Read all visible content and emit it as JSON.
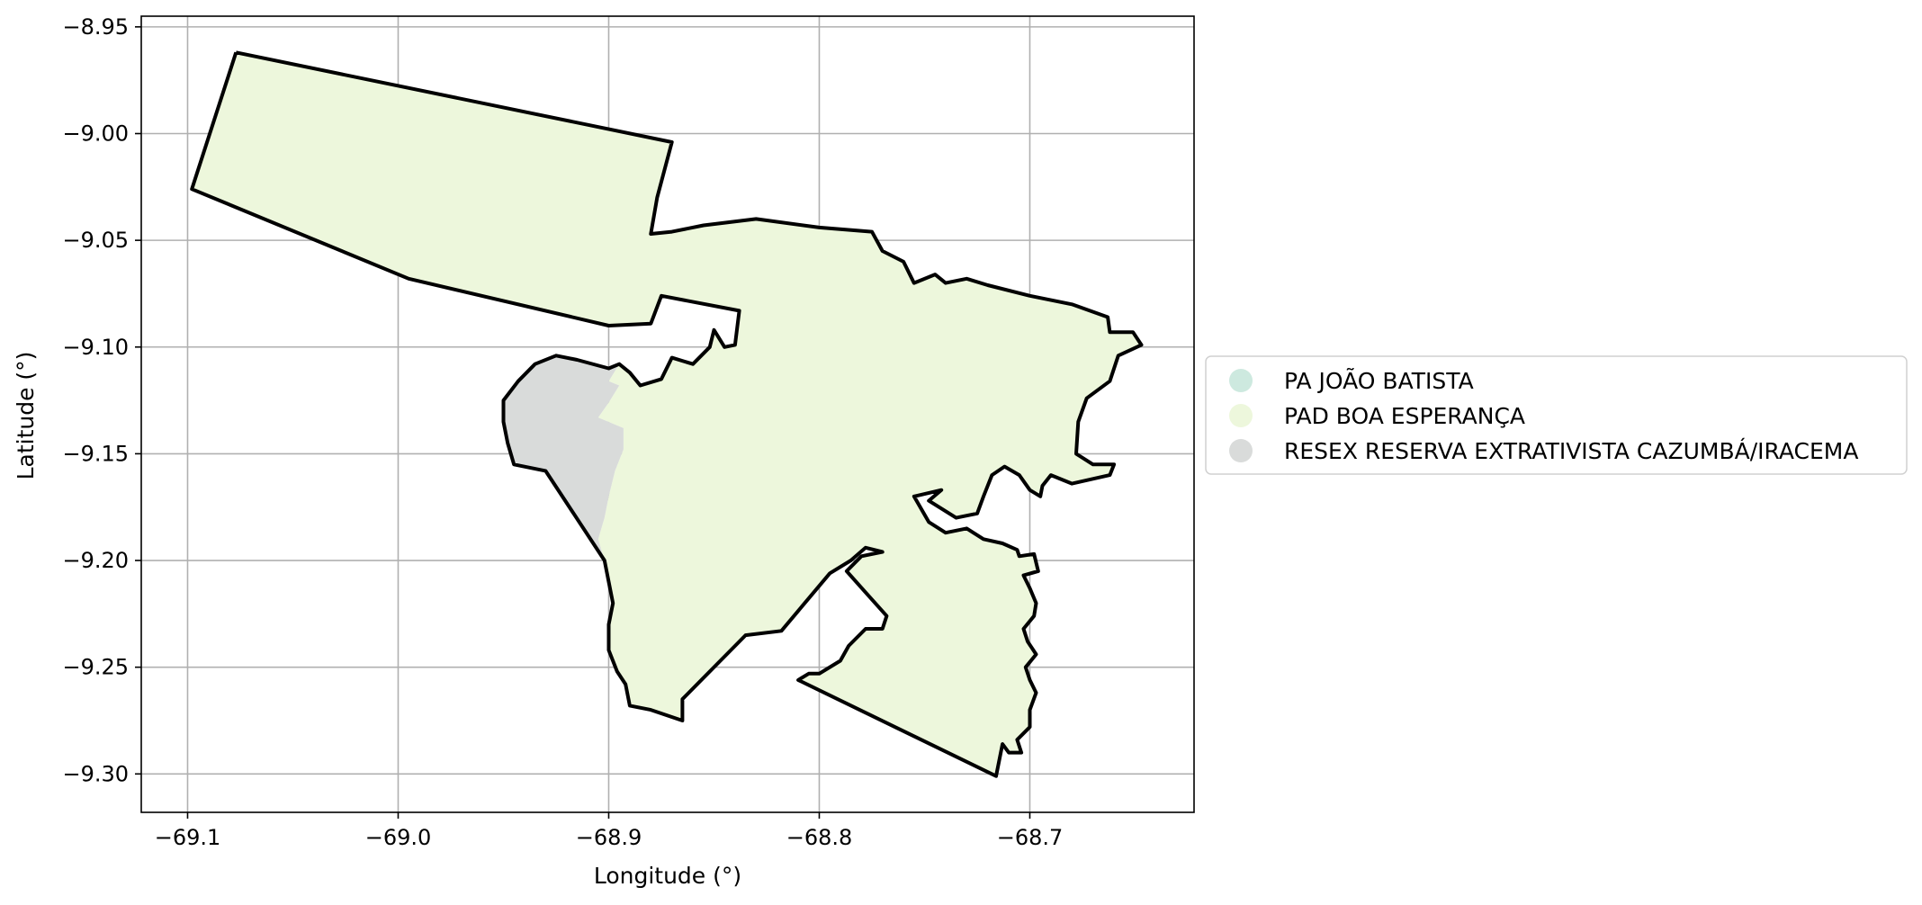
{
  "figure": {
    "xlabel": "Longitude (°)",
    "ylabel": "Latitude (°)"
  },
  "chart_data": {
    "type": "map",
    "xlim": [
      -69.122,
      -68.622
    ],
    "ylim": [
      -9.318,
      -8.945
    ],
    "grid": true,
    "legend_placement": "outside right, vertically centered",
    "x_ticks": [
      {
        "value": -69.1,
        "label": "−69.1"
      },
      {
        "value": -69.0,
        "label": "−69.0"
      },
      {
        "value": -68.9,
        "label": "−68.9"
      },
      {
        "value": -68.8,
        "label": "−68.8"
      },
      {
        "value": -68.7,
        "label": "−68.7"
      }
    ],
    "y_ticks": [
      {
        "value": -8.95,
        "label": "−8.95"
      },
      {
        "value": -9.0,
        "label": "−9.00"
      },
      {
        "value": -9.05,
        "label": "−9.05"
      },
      {
        "value": -9.1,
        "label": "−9.10"
      },
      {
        "value": -9.15,
        "label": "−9.15"
      },
      {
        "value": -9.2,
        "label": "−9.20"
      },
      {
        "value": -9.25,
        "label": "−9.25"
      },
      {
        "value": -9.3,
        "label": "−9.30"
      }
    ],
    "legend": [
      {
        "label": "PA JOÃO BATISTA",
        "color": "#cde9df"
      },
      {
        "label": "PAD BOA ESPERANÇA",
        "color": "#edf7dc"
      },
      {
        "label": "RESEX RESERVA EXTRATIVISTA CAZUMBÁ/IRACEMA",
        "color": "#d9dbda"
      }
    ],
    "boundary_color": "#000000",
    "regions": [
      {
        "name": "PAD BOA ESPERANÇA",
        "color": "#edf7dc",
        "coords": [
          [
            -69.077,
            -8.962
          ],
          [
            -68.87,
            -9.004
          ],
          [
            -68.877,
            -9.03
          ],
          [
            -68.88,
            -9.047
          ],
          [
            -68.87,
            -9.046
          ],
          [
            -68.855,
            -9.043
          ],
          [
            -68.83,
            -9.04
          ],
          [
            -68.8,
            -9.044
          ],
          [
            -68.775,
            -9.046
          ],
          [
            -68.77,
            -9.055
          ],
          [
            -68.76,
            -9.06
          ],
          [
            -68.755,
            -9.07
          ],
          [
            -68.745,
            -9.066
          ],
          [
            -68.74,
            -9.07
          ],
          [
            -68.73,
            -9.068
          ],
          [
            -68.72,
            -9.071
          ],
          [
            -68.7,
            -9.076
          ],
          [
            -68.68,
            -9.08
          ],
          [
            -68.663,
            -9.086
          ],
          [
            -68.662,
            -9.093
          ],
          [
            -68.651,
            -9.093
          ],
          [
            -68.647,
            -9.099
          ],
          [
            -68.658,
            -9.104
          ],
          [
            -68.662,
            -9.116
          ],
          [
            -68.673,
            -9.124
          ],
          [
            -68.677,
            -9.135
          ],
          [
            -68.678,
            -9.15
          ],
          [
            -68.67,
            -9.155
          ],
          [
            -68.66,
            -9.155
          ],
          [
            -68.662,
            -9.16
          ],
          [
            -68.68,
            -9.164
          ],
          [
            -68.69,
            -9.16
          ],
          [
            -68.694,
            -9.165
          ],
          [
            -68.695,
            -9.17
          ],
          [
            -68.7,
            -9.167
          ],
          [
            -68.705,
            -9.16
          ],
          [
            -68.712,
            -9.156
          ],
          [
            -68.718,
            -9.16
          ],
          [
            -68.722,
            -9.17
          ],
          [
            -68.725,
            -9.178
          ],
          [
            -68.735,
            -9.18
          ],
          [
            -68.748,
            -9.172
          ],
          [
            -68.742,
            -9.167
          ],
          [
            -68.755,
            -9.17
          ],
          [
            -68.748,
            -9.182
          ],
          [
            -68.74,
            -9.187
          ],
          [
            -68.73,
            -9.185
          ],
          [
            -68.722,
            -9.19
          ],
          [
            -68.713,
            -9.192
          ],
          [
            -68.706,
            -9.195
          ],
          [
            -68.705,
            -9.198
          ],
          [
            -68.698,
            -9.197
          ],
          [
            -68.696,
            -9.205
          ],
          [
            -68.703,
            -9.207
          ],
          [
            -68.7,
            -9.213
          ],
          [
            -68.697,
            -9.22
          ],
          [
            -68.698,
            -9.226
          ],
          [
            -68.703,
            -9.232
          ],
          [
            -68.701,
            -9.238
          ],
          [
            -68.697,
            -9.244
          ],
          [
            -68.702,
            -9.25
          ],
          [
            -68.7,
            -9.256
          ],
          [
            -68.697,
            -9.262
          ],
          [
            -68.7,
            -9.27
          ],
          [
            -68.7,
            -9.278
          ],
          [
            -68.706,
            -9.284
          ],
          [
            -68.704,
            -9.29
          ],
          [
            -68.71,
            -9.29
          ],
          [
            -68.713,
            -9.286
          ],
          [
            -68.716,
            -9.301
          ],
          [
            -68.81,
            -9.256
          ],
          [
            -68.805,
            -9.253
          ],
          [
            -68.8,
            -9.253
          ],
          [
            -68.79,
            -9.247
          ],
          [
            -68.786,
            -9.24
          ],
          [
            -68.778,
            -9.232
          ],
          [
            -68.77,
            -9.232
          ],
          [
            -68.768,
            -9.226
          ],
          [
            -68.778,
            -9.215
          ],
          [
            -68.787,
            -9.205
          ],
          [
            -68.78,
            -9.198
          ],
          [
            -68.77,
            -9.196
          ],
          [
            -68.778,
            -9.194
          ],
          [
            -68.785,
            -9.2
          ],
          [
            -68.795,
            -9.206
          ],
          [
            -68.818,
            -9.233
          ],
          [
            -68.835,
            -9.235
          ],
          [
            -68.865,
            -9.265
          ],
          [
            -68.865,
            -9.275
          ],
          [
            -68.88,
            -9.27
          ],
          [
            -68.89,
            -9.268
          ],
          [
            -68.892,
            -9.258
          ],
          [
            -68.896,
            -9.252
          ],
          [
            -68.9,
            -9.242
          ],
          [
            -68.9,
            -9.23
          ],
          [
            -68.898,
            -9.22
          ],
          [
            -68.9,
            -9.21
          ],
          [
            -68.902,
            -9.2
          ],
          [
            -68.905,
            -9.19
          ],
          [
            -68.902,
            -9.18
          ],
          [
            -68.9,
            -9.17
          ],
          [
            -68.897,
            -9.158
          ],
          [
            -68.893,
            -9.148
          ],
          [
            -68.893,
            -9.138
          ],
          [
            -68.905,
            -9.133
          ],
          [
            -68.9,
            -9.126
          ],
          [
            -68.895,
            -9.118
          ],
          [
            -68.9,
            -9.116
          ],
          [
            -68.895,
            -9.108
          ],
          [
            -68.89,
            -9.112
          ],
          [
            -68.885,
            -9.118
          ],
          [
            -68.875,
            -9.115
          ],
          [
            -68.87,
            -9.105
          ],
          [
            -68.86,
            -9.108
          ],
          [
            -68.852,
            -9.1
          ],
          [
            -68.85,
            -9.092
          ],
          [
            -68.845,
            -9.1
          ],
          [
            -68.84,
            -9.099
          ],
          [
            -68.838,
            -9.083
          ],
          [
            -68.875,
            -9.076
          ],
          [
            -68.88,
            -9.089
          ],
          [
            -68.9,
            -9.09
          ],
          [
            -68.995,
            -9.068
          ],
          [
            -69.098,
            -9.026
          ]
        ]
      },
      {
        "name": "RESEX RESERVA EXTRATIVISTA CAZUMBÁ/IRACEMA",
        "color": "#d9dbda",
        "coords": [
          [
            -68.943,
            -9.116
          ],
          [
            -68.935,
            -9.108
          ],
          [
            -68.925,
            -9.104
          ],
          [
            -68.915,
            -9.106
          ],
          [
            -68.9,
            -9.11
          ],
          [
            -68.895,
            -9.108
          ],
          [
            -68.9,
            -9.116
          ],
          [
            -68.895,
            -9.118
          ],
          [
            -68.9,
            -9.126
          ],
          [
            -68.905,
            -9.133
          ],
          [
            -68.893,
            -9.138
          ],
          [
            -68.893,
            -9.148
          ],
          [
            -68.897,
            -9.158
          ],
          [
            -68.9,
            -9.17
          ],
          [
            -68.902,
            -9.18
          ],
          [
            -68.905,
            -9.19
          ],
          [
            -68.902,
            -9.2
          ],
          [
            -68.93,
            -9.158
          ],
          [
            -68.945,
            -9.155
          ],
          [
            -68.948,
            -9.145
          ],
          [
            -68.95,
            -9.135
          ],
          [
            -68.95,
            -9.125
          ]
        ]
      }
    ],
    "boundary_lines": [
      [
        [
          -69.077,
          -8.962
        ],
        [
          -68.87,
          -9.004
        ],
        [
          -68.877,
          -9.03
        ],
        [
          -68.88,
          -9.047
        ],
        [
          -68.87,
          -9.046
        ],
        [
          -68.855,
          -9.043
        ],
        [
          -68.83,
          -9.04
        ],
        [
          -68.8,
          -9.044
        ],
        [
          -68.775,
          -9.046
        ],
        [
          -68.77,
          -9.055
        ],
        [
          -68.76,
          -9.06
        ],
        [
          -68.755,
          -9.07
        ],
        [
          -68.745,
          -9.066
        ],
        [
          -68.74,
          -9.07
        ],
        [
          -68.73,
          -9.068
        ],
        [
          -68.72,
          -9.071
        ],
        [
          -68.7,
          -9.076
        ],
        [
          -68.68,
          -9.08
        ],
        [
          -68.663,
          -9.086
        ],
        [
          -68.662,
          -9.093
        ],
        [
          -68.651,
          -9.093
        ],
        [
          -68.647,
          -9.099
        ],
        [
          -68.658,
          -9.104
        ],
        [
          -68.662,
          -9.116
        ],
        [
          -68.673,
          -9.124
        ],
        [
          -68.677,
          -9.135
        ],
        [
          -68.678,
          -9.15
        ],
        [
          -68.67,
          -9.155
        ],
        [
          -68.66,
          -9.155
        ],
        [
          -68.662,
          -9.16
        ],
        [
          -68.68,
          -9.164
        ],
        [
          -68.69,
          -9.16
        ],
        [
          -68.694,
          -9.165
        ],
        [
          -68.695,
          -9.17
        ],
        [
          -68.7,
          -9.167
        ],
        [
          -68.705,
          -9.16
        ],
        [
          -68.712,
          -9.156
        ],
        [
          -68.718,
          -9.16
        ],
        [
          -68.722,
          -9.17
        ],
        [
          -68.725,
          -9.178
        ],
        [
          -68.735,
          -9.18
        ],
        [
          -68.748,
          -9.172
        ],
        [
          -68.742,
          -9.167
        ],
        [
          -68.755,
          -9.17
        ],
        [
          -68.748,
          -9.182
        ],
        [
          -68.74,
          -9.187
        ],
        [
          -68.73,
          -9.185
        ],
        [
          -68.722,
          -9.19
        ],
        [
          -68.713,
          -9.192
        ],
        [
          -68.706,
          -9.195
        ],
        [
          -68.705,
          -9.198
        ],
        [
          -68.698,
          -9.197
        ],
        [
          -68.696,
          -9.205
        ],
        [
          -68.703,
          -9.207
        ],
        [
          -68.7,
          -9.213
        ],
        [
          -68.697,
          -9.22
        ],
        [
          -68.698,
          -9.226
        ],
        [
          -68.703,
          -9.232
        ],
        [
          -68.701,
          -9.238
        ],
        [
          -68.697,
          -9.244
        ],
        [
          -68.702,
          -9.25
        ],
        [
          -68.7,
          -9.256
        ],
        [
          -68.697,
          -9.262
        ],
        [
          -68.7,
          -9.27
        ],
        [
          -68.7,
          -9.278
        ],
        [
          -68.706,
          -9.284
        ],
        [
          -68.704,
          -9.29
        ],
        [
          -68.71,
          -9.29
        ],
        [
          -68.713,
          -9.286
        ],
        [
          -68.716,
          -9.301
        ],
        [
          -68.81,
          -9.256
        ],
        [
          -68.805,
          -9.253
        ],
        [
          -68.8,
          -9.253
        ],
        [
          -68.79,
          -9.247
        ],
        [
          -68.786,
          -9.24
        ],
        [
          -68.778,
          -9.232
        ],
        [
          -68.77,
          -9.232
        ],
        [
          -68.768,
          -9.226
        ],
        [
          -68.778,
          -9.215
        ],
        [
          -68.787,
          -9.205
        ],
        [
          -68.78,
          -9.198
        ],
        [
          -68.77,
          -9.196
        ],
        [
          -68.778,
          -9.194
        ],
        [
          -68.785,
          -9.2
        ],
        [
          -68.795,
          -9.206
        ],
        [
          -68.818,
          -9.233
        ],
        [
          -68.835,
          -9.235
        ],
        [
          -68.865,
          -9.265
        ],
        [
          -68.865,
          -9.275
        ],
        [
          -68.88,
          -9.27
        ],
        [
          -68.89,
          -9.268
        ],
        [
          -68.892,
          -9.258
        ],
        [
          -68.896,
          -9.252
        ],
        [
          -68.9,
          -9.242
        ],
        [
          -68.9,
          -9.23
        ],
        [
          -68.898,
          -9.22
        ],
        [
          -68.9,
          -9.21
        ],
        [
          -68.902,
          -9.2
        ],
        [
          -68.93,
          -9.158
        ],
        [
          -68.945,
          -9.155
        ],
        [
          -68.948,
          -9.145
        ],
        [
          -68.95,
          -9.135
        ],
        [
          -68.95,
          -9.125
        ],
        [
          -68.943,
          -9.116
        ],
        [
          -68.935,
          -9.108
        ],
        [
          -68.925,
          -9.104
        ],
        [
          -68.915,
          -9.106
        ],
        [
          -68.9,
          -9.11
        ],
        [
          -68.895,
          -9.108
        ],
        [
          -68.89,
          -9.112
        ],
        [
          -68.885,
          -9.118
        ],
        [
          -68.875,
          -9.115
        ],
        [
          -68.87,
          -9.105
        ],
        [
          -68.86,
          -9.108
        ],
        [
          -68.852,
          -9.1
        ],
        [
          -68.85,
          -9.092
        ],
        [
          -68.845,
          -9.1
        ],
        [
          -68.84,
          -9.099
        ],
        [
          -68.838,
          -9.083
        ],
        [
          -68.875,
          -9.076
        ],
        [
          -68.88,
          -9.089
        ],
        [
          -68.9,
          -9.09
        ],
        [
          -68.995,
          -9.068
        ],
        [
          -69.098,
          -9.026
        ],
        [
          -69.077,
          -8.962
        ]
      ]
    ]
  }
}
